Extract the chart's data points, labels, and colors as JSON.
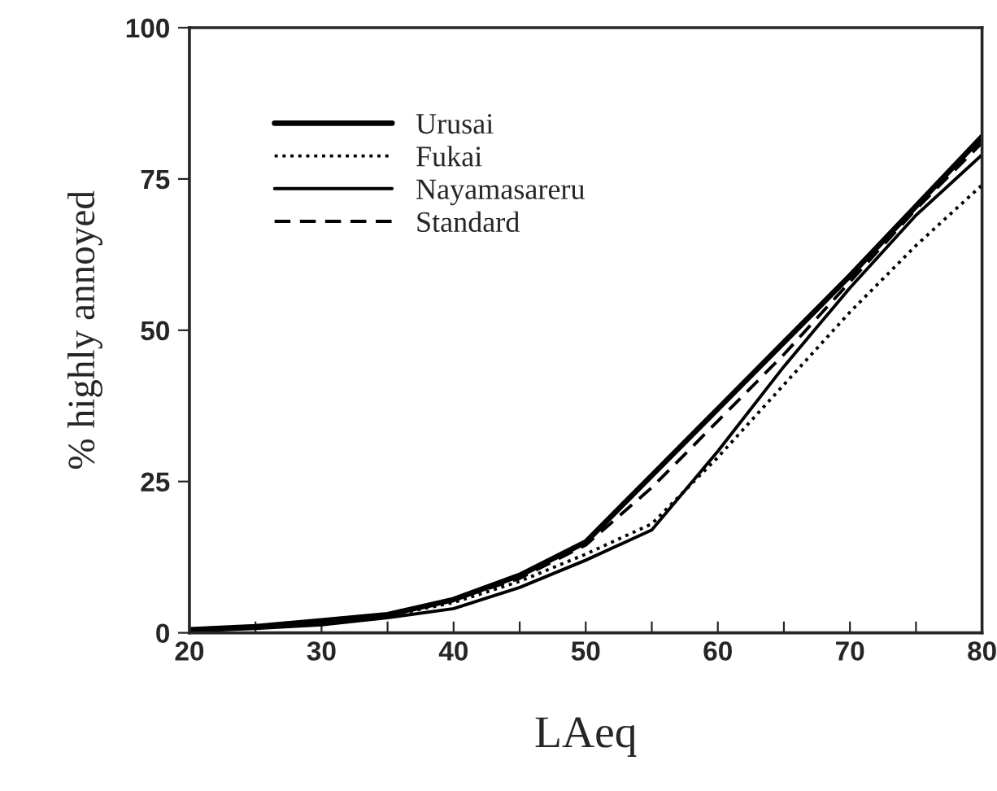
{
  "chart_data": {
    "type": "line",
    "xlabel": "LAeq",
    "ylabel": "% highly annoyed",
    "x": [
      20,
      25,
      30,
      35,
      40,
      45,
      50,
      55,
      60,
      65,
      70,
      75,
      80
    ],
    "series": [
      {
        "name": "Urusai",
        "color": "#000000",
        "line_style": "solid",
        "values": [
          0.5,
          1,
          2,
          3,
          5.5,
          9.5,
          15,
          26,
          37,
          48,
          59,
          70.5,
          82
        ]
      },
      {
        "name": "Fukai",
        "color": "#000000",
        "line_style": "dotted",
        "values": [
          0.3,
          0.8,
          1.6,
          2.8,
          5,
          8.5,
          13,
          18,
          29,
          41,
          53,
          64,
          74
        ]
      },
      {
        "name": "Nayamasareru",
        "color": "#000000",
        "line_style": "solid",
        "values": [
          0.3,
          0.7,
          1.3,
          2.5,
          4,
          7.5,
          12,
          17,
          30,
          44,
          57,
          69,
          79
        ]
      },
      {
        "name": "Standard",
        "color": "#000000",
        "line_style": "dashed",
        "values": [
          0.4,
          0.9,
          1.8,
          3,
          5.5,
          9,
          14.5,
          24,
          35,
          46,
          58,
          70,
          81
        ]
      }
    ],
    "xlim": [
      20,
      80
    ],
    "ylim": [
      0,
      100
    ],
    "xticks": [
      20,
      {
        "value": 25,
        "label": null
      },
      30,
      {
        "value": 35,
        "label": null
      },
      40,
      {
        "value": 45,
        "label": null
      },
      50,
      {
        "value": 55,
        "label": null
      },
      60,
      {
        "value": 65,
        "label": null
      },
      70,
      {
        "value": 75,
        "label": null
      },
      80
    ],
    "yticks": [
      0,
      25,
      50,
      75,
      100
    ],
    "grid": false,
    "legend": "top left",
    "marker": "none"
  }
}
